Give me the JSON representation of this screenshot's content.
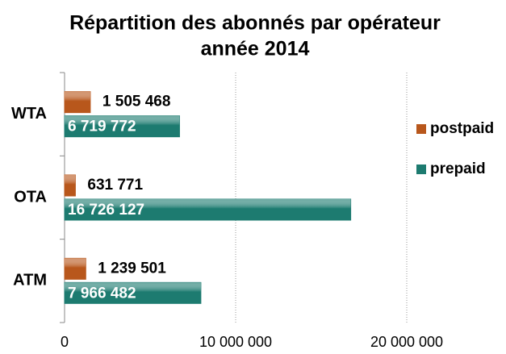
{
  "chart_data": {
    "type": "bar",
    "orientation": "horizontal",
    "title": [
      "Répartition des abonnés par opérateur",
      "année 2014"
    ],
    "categories": [
      "WTA",
      "OTA",
      "ATM"
    ],
    "series": [
      {
        "name": "postpaid",
        "color": "#b8571c",
        "values": [
          1505468,
          631771,
          1239501
        ],
        "value_labels": [
          "1 505 468",
          "631 771",
          "1 239 501"
        ]
      },
      {
        "name": "prepaid",
        "color": "#1d7b70",
        "values": [
          6719772,
          16726127,
          7966482
        ],
        "value_labels": [
          "6 719 772",
          "16 726 127",
          "7 966 482"
        ]
      }
    ],
    "xlim": [
      0,
      20000000
    ],
    "xticks": [
      0,
      {
        "value": 10000000,
        "label": "10 000 000"
      },
      {
        "value": 20000000,
        "label": "20 000 000"
      }
    ],
    "grid": true,
    "legend": "right"
  }
}
